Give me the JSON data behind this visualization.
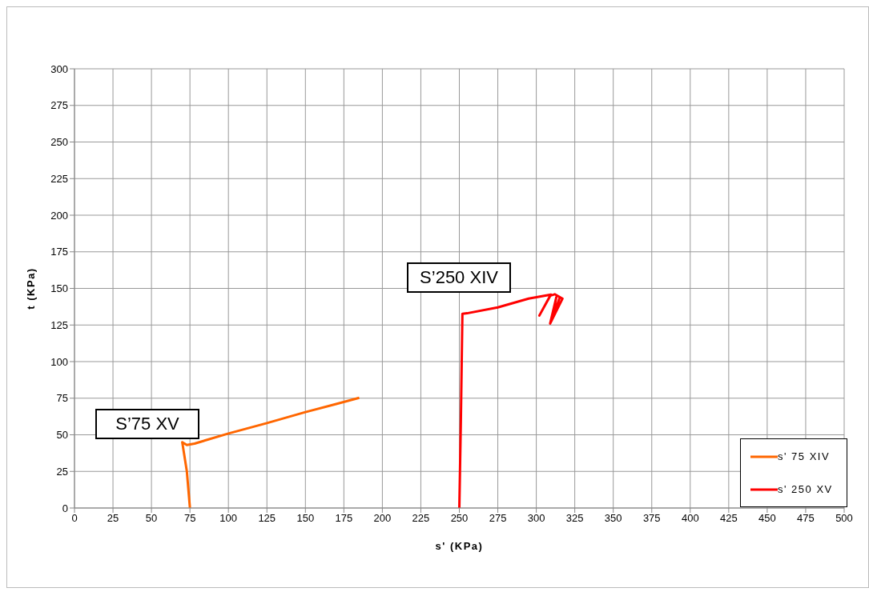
{
  "chart_data": {
    "type": "line",
    "xlabel": "s' (KPa)",
    "ylabel": "t (KPa)",
    "xlim": [
      0,
      500
    ],
    "xticks": [
      0,
      25,
      50,
      75,
      100,
      125,
      150,
      175,
      200,
      225,
      250,
      275,
      300,
      325,
      350,
      375,
      400,
      425,
      450,
      475,
      500
    ],
    "ylim": [
      0,
      300
    ],
    "yticks": [
      0,
      25,
      50,
      75,
      100,
      125,
      150,
      175,
      200,
      225,
      250,
      275,
      300
    ],
    "grid": true,
    "legend": "bottom right",
    "marker": "none",
    "line_style": "solid",
    "series": [
      {
        "name": "s' 75 XIV",
        "color": "#ff6600",
        "x": [
          75,
          73,
          70,
          73,
          78,
          100,
          125,
          150,
          170,
          185
        ],
        "values": [
          0,
          25,
          45,
          43,
          44,
          50.9,
          58,
          65.5,
          71,
          75.3
        ]
      },
      {
        "name": "s' 250 XV",
        "color": "#ff0000",
        "x": [
          250,
          251,
          252,
          255,
          275,
          295,
          309.5,
          302,
          309,
          312,
          317,
          309,
          313,
          310,
          315,
          309
        ],
        "values": [
          0,
          60,
          132.7,
          133,
          137,
          143,
          145.8,
          131.5,
          145,
          146,
          143,
          126,
          144,
          128,
          143,
          126
        ]
      }
    ],
    "annotations": [
      "S’75 XV",
      "S’250 XIV"
    ]
  }
}
